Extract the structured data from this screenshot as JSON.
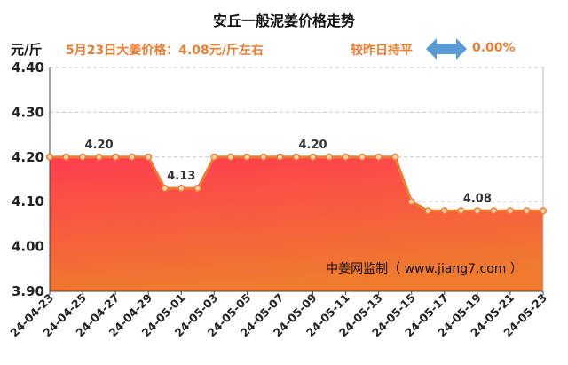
{
  "header": {
    "title": "安丘一般泥姜价格走势",
    "unit": "元/斤",
    "price_note": "5月23日大姜价格：4.08元/斤左右",
    "compare_label": "较昨日持平",
    "compare_value": "0.00%",
    "compare_icon": "left-right-arrow-icon"
  },
  "chart_data": {
    "type": "area",
    "title": "安丘一般泥姜价格走势",
    "ylabel": "元/斤",
    "ylim": [
      3.9,
      4.4
    ],
    "yticks": [
      "4.40",
      "4.30",
      "4.20",
      "4.10",
      "4.00",
      "3.90"
    ],
    "grid": true,
    "x": [
      "24-04-23",
      "24-04-24",
      "24-04-25",
      "24-04-26",
      "24-04-27",
      "24-04-28",
      "24-04-29",
      "24-04-30",
      "24-05-01",
      "24-05-02",
      "24-05-03",
      "24-05-04",
      "24-05-05",
      "24-05-06",
      "24-05-07",
      "24-05-08",
      "24-05-09",
      "24-05-10",
      "24-05-11",
      "24-05-12",
      "24-05-13",
      "24-05-14",
      "24-05-15",
      "24-05-16",
      "24-05-17",
      "24-05-18",
      "24-05-19",
      "24-05-20",
      "24-05-21",
      "24-05-22",
      "24-05-23"
    ],
    "xticks": [
      "24-04-23",
      "24-04-25",
      "24-04-27",
      "24-04-29",
      "24-05-01",
      "24-05-03",
      "24-05-05",
      "24-05-07",
      "24-05-09",
      "24-05-11",
      "24-05-13",
      "24-05-15",
      "24-05-17",
      "24-05-19",
      "24-05-21",
      "24-05-23"
    ],
    "series": [
      {
        "values": [
          4.2,
          4.2,
          4.2,
          4.2,
          4.2,
          4.2,
          4.2,
          4.13,
          4.13,
          4.13,
          4.2,
          4.2,
          4.2,
          4.2,
          4.2,
          4.2,
          4.2,
          4.2,
          4.2,
          4.2,
          4.2,
          4.2,
          4.1,
          4.08,
          4.08,
          4.08,
          4.08,
          4.08,
          4.08,
          4.08,
          4.08
        ]
      }
    ],
    "data_labels": [
      {
        "index": 3,
        "text": "4.20"
      },
      {
        "index": 8,
        "text": "4.13"
      },
      {
        "index": 16,
        "text": "4.20"
      },
      {
        "index": 26,
        "text": "4.08"
      }
    ],
    "watermark": "中姜网监制（ www.jiang7.com ）",
    "colors": {
      "line": "#ed7d31",
      "fill_top": "#ff3d50",
      "fill_bottom": "#ef7a2e",
      "label": "#ed7d31"
    }
  }
}
